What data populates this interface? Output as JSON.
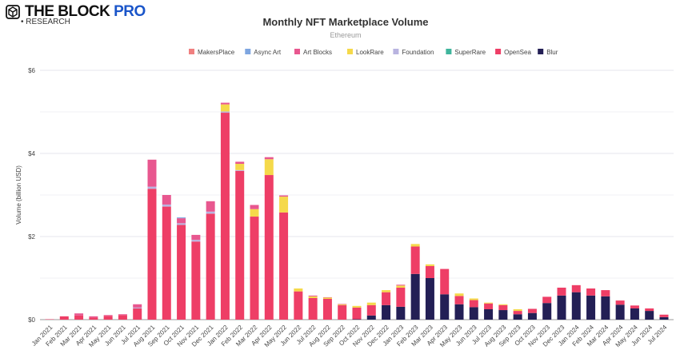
{
  "brand": {
    "name": "THE BLOCK",
    "pro": "PRO",
    "research": "• RESEARCH"
  },
  "chart_data": {
    "type": "bar",
    "stacked": true,
    "title": "Monthly NFT Marketplace Volume",
    "subtitle": "Ethereum",
    "ylabel": "Volume (billion USD)",
    "xlabel": "",
    "ylim": [
      0,
      6
    ],
    "yticks": [
      0,
      2,
      4,
      6
    ],
    "ytick_labels": [
      "$0",
      "$2",
      "$4",
      "$6"
    ],
    "grid": true,
    "legend_position": "top",
    "categories": [
      "Jan 2021",
      "Feb 2021",
      "Mar 2021",
      "Apr 2021",
      "May 2021",
      "Jun 2021",
      "Jul 2021",
      "Aug 2021",
      "Sep 2021",
      "Oct 2021",
      "Nov 2021",
      "Dec 2021",
      "Jan 2022",
      "Feb 2022",
      "Mar 2022",
      "Apr 2022",
      "May 2022",
      "Jun 2022",
      "Jul 2022",
      "Aug 2022",
      "Sep 2022",
      "Oct 2022",
      "Nov 2022",
      "Dec 2022",
      "Jan 2023",
      "Feb 2023",
      "Mar 2023",
      "Apr 2023",
      "May 2023",
      "Jun 2023",
      "Jul 2023",
      "Aug 2023",
      "Sep 2023",
      "Oct 2023",
      "Nov 2023",
      "Dec 2023",
      "Jan 2024",
      "Feb 2024",
      "Mar 2024",
      "Apr 2024",
      "May 2024",
      "Jun 2024",
      "Jul 2024"
    ],
    "legend_order": [
      "MakersPlace",
      "Async Art",
      "Art Blocks",
      "LookRare",
      "Foundation",
      "SuperRare",
      "OpenSea",
      "Blur"
    ],
    "series": [
      {
        "name": "Blur",
        "color": "#231f55",
        "values": [
          0,
          0,
          0,
          0,
          0,
          0,
          0,
          0,
          0,
          0,
          0,
          0,
          0,
          0,
          0,
          0,
          0,
          0,
          0,
          0,
          0,
          0.01,
          0.1,
          0.35,
          0.31,
          1.1,
          1.0,
          0.61,
          0.37,
          0.3,
          0.25,
          0.23,
          0.13,
          0.16,
          0.4,
          0.58,
          0.66,
          0.58,
          0.56,
          0.36,
          0.27,
          0.21,
          0.06
        ]
      },
      {
        "name": "OpenSea",
        "color": "#ee3e66",
        "values": [
          0.01,
          0.08,
          0.1,
          0.05,
          0.09,
          0.11,
          0.27,
          3.15,
          2.72,
          2.28,
          1.88,
          2.55,
          4.98,
          3.58,
          2.48,
          3.48,
          2.58,
          0.68,
          0.52,
          0.5,
          0.35,
          0.28,
          0.25,
          0.31,
          0.46,
          0.66,
          0.29,
          0.61,
          0.2,
          0.17,
          0.14,
          0.12,
          0.08,
          0.1,
          0.15,
          0.19,
          0.17,
          0.17,
          0.15,
          0.1,
          0.07,
          0.06,
          0.06
        ]
      },
      {
        "name": "SuperRare",
        "color": "#3fb59c",
        "values": [
          0,
          0,
          0,
          0,
          0,
          0,
          0,
          0,
          0,
          0,
          0,
          0,
          0,
          0,
          0,
          0,
          0,
          0,
          0,
          0,
          0,
          0,
          0,
          0,
          0,
          0,
          0,
          0,
          0,
          0,
          0,
          0,
          0,
          0,
          0,
          0,
          0,
          0,
          0,
          0,
          0,
          0,
          0
        ]
      },
      {
        "name": "Foundation",
        "color": "#b9b4e0",
        "values": [
          0,
          0,
          0,
          0,
          0,
          0,
          0.02,
          0.05,
          0.05,
          0.04,
          0.04,
          0.05,
          0.03,
          0.02,
          0,
          0,
          0,
          0,
          0,
          0,
          0,
          0,
          0,
          0,
          0,
          0,
          0,
          0,
          0,
          0,
          0,
          0,
          0,
          0,
          0,
          0,
          0,
          0,
          0,
          0,
          0,
          0,
          0
        ]
      },
      {
        "name": "LookRare",
        "color": "#f5d94a",
        "values": [
          0,
          0,
          0,
          0,
          0,
          0,
          0,
          0,
          0,
          0,
          0,
          0,
          0.17,
          0.15,
          0.18,
          0.38,
          0.38,
          0.07,
          0.04,
          0.03,
          0.02,
          0.04,
          0.06,
          0.05,
          0.05,
          0.06,
          0.04,
          0,
          0.06,
          0.04,
          0.02,
          0.02,
          0.04,
          0,
          0,
          0,
          0,
          0,
          0,
          0,
          0,
          0,
          0
        ]
      },
      {
        "name": "Art Blocks",
        "color": "#e8578f",
        "values": [
          0,
          0,
          0.05,
          0.03,
          0.02,
          0.02,
          0.08,
          0.65,
          0.23,
          0.12,
          0.12,
          0.25,
          0.04,
          0.05,
          0.1,
          0.05,
          0.03,
          0,
          0.02,
          0.01,
          0.01,
          0,
          0,
          0,
          0.02,
          0,
          0,
          0,
          0,
          0,
          0,
          0,
          0,
          0,
          0,
          0,
          0,
          0,
          0,
          0,
          0,
          0,
          0
        ]
      },
      {
        "name": "Async Art",
        "color": "#7ea6e0",
        "values": [
          0,
          0,
          0,
          0,
          0,
          0,
          0,
          0,
          0,
          0.02,
          0,
          0,
          0,
          0,
          0,
          0,
          0,
          0,
          0,
          0,
          0,
          0,
          0,
          0,
          0,
          0,
          0,
          0,
          0,
          0,
          0,
          0,
          0,
          0,
          0,
          0,
          0,
          0,
          0,
          0,
          0,
          0,
          0
        ]
      },
      {
        "name": "MakersPlace",
        "color": "#f08080",
        "values": [
          0,
          0,
          0,
          0,
          0,
          0,
          0,
          0,
          0,
          0,
          0,
          0,
          0,
          0,
          0,
          0,
          0,
          0,
          0,
          0,
          0,
          0,
          0,
          0,
          0,
          0,
          0,
          0,
          0,
          0,
          0,
          0,
          0,
          0,
          0,
          0,
          0,
          0,
          0,
          0,
          0,
          0,
          0
        ]
      }
    ]
  }
}
